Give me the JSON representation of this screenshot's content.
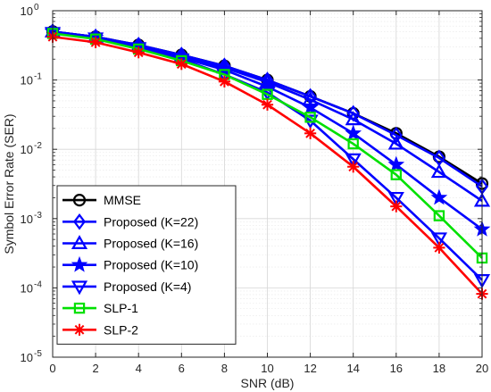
{
  "chart_data": {
    "type": "line",
    "title": "",
    "xlabel": "SNR (dB)",
    "ylabel": "Symbol Error Rate (SER)",
    "xlim": [
      0,
      20
    ],
    "ylim": [
      1e-05,
      1
    ],
    "yscale": "log",
    "x_ticks": [
      0,
      2,
      4,
      6,
      8,
      10,
      12,
      14,
      16,
      18,
      20
    ],
    "y_ticks": [
      {
        "value": 1e-05,
        "base": "10",
        "exp": "-5"
      },
      {
        "value": 0.0001,
        "base": "10",
        "exp": "-4"
      },
      {
        "value": 0.001,
        "base": "10",
        "exp": "-3"
      },
      {
        "value": 0.01,
        "base": "10",
        "exp": "-2"
      },
      {
        "value": 0.1,
        "base": "10",
        "exp": "-1"
      },
      {
        "value": 1,
        "base": "10",
        "exp": "0"
      }
    ],
    "grid": true,
    "legend_position": "bottom-left",
    "x": [
      0,
      2,
      4,
      6,
      8,
      10,
      12,
      14,
      16,
      18,
      20
    ],
    "series": [
      {
        "name": "MMSE",
        "color": "#000000",
        "marker": "circle",
        "values": [
          0.5,
          0.42,
          0.32,
          0.23,
          0.16,
          0.1,
          0.058,
          0.033,
          0.017,
          0.0078,
          0.0032
        ]
      },
      {
        "name": "Proposed (K=22)",
        "color": "#0000ff",
        "marker": "diamond",
        "values": [
          0.5,
          0.42,
          0.32,
          0.23,
          0.16,
          0.1,
          0.058,
          0.033,
          0.016,
          0.0075,
          0.0029
        ]
      },
      {
        "name": "Proposed (K=16)",
        "color": "#0000ff",
        "marker": "triangle-up",
        "values": [
          0.5,
          0.42,
          0.31,
          0.22,
          0.15,
          0.093,
          0.052,
          0.027,
          0.012,
          0.0047,
          0.0018
        ]
      },
      {
        "name": "Proposed (K=10)",
        "color": "#0000ff",
        "marker": "star",
        "values": [
          0.5,
          0.41,
          0.3,
          0.21,
          0.14,
          0.08,
          0.04,
          0.017,
          0.006,
          0.002,
          0.0007
        ]
      },
      {
        "name": "Proposed (K=4)",
        "color": "#0000ff",
        "marker": "triangle-down",
        "values": [
          0.48,
          0.4,
          0.29,
          0.2,
          0.12,
          0.066,
          0.026,
          0.0072,
          0.002,
          0.00052,
          0.00013
        ]
      },
      {
        "name": "SLP-1",
        "color": "#00e000",
        "marker": "square",
        "values": [
          0.47,
          0.39,
          0.28,
          0.19,
          0.12,
          0.062,
          0.029,
          0.012,
          0.0043,
          0.0011,
          0.00027
        ]
      },
      {
        "name": "SLP-2",
        "color": "#ff0000",
        "marker": "asterisk",
        "values": [
          0.42,
          0.35,
          0.25,
          0.17,
          0.095,
          0.044,
          0.017,
          0.0056,
          0.0015,
          0.00038,
          8.2e-05
        ]
      }
    ]
  }
}
